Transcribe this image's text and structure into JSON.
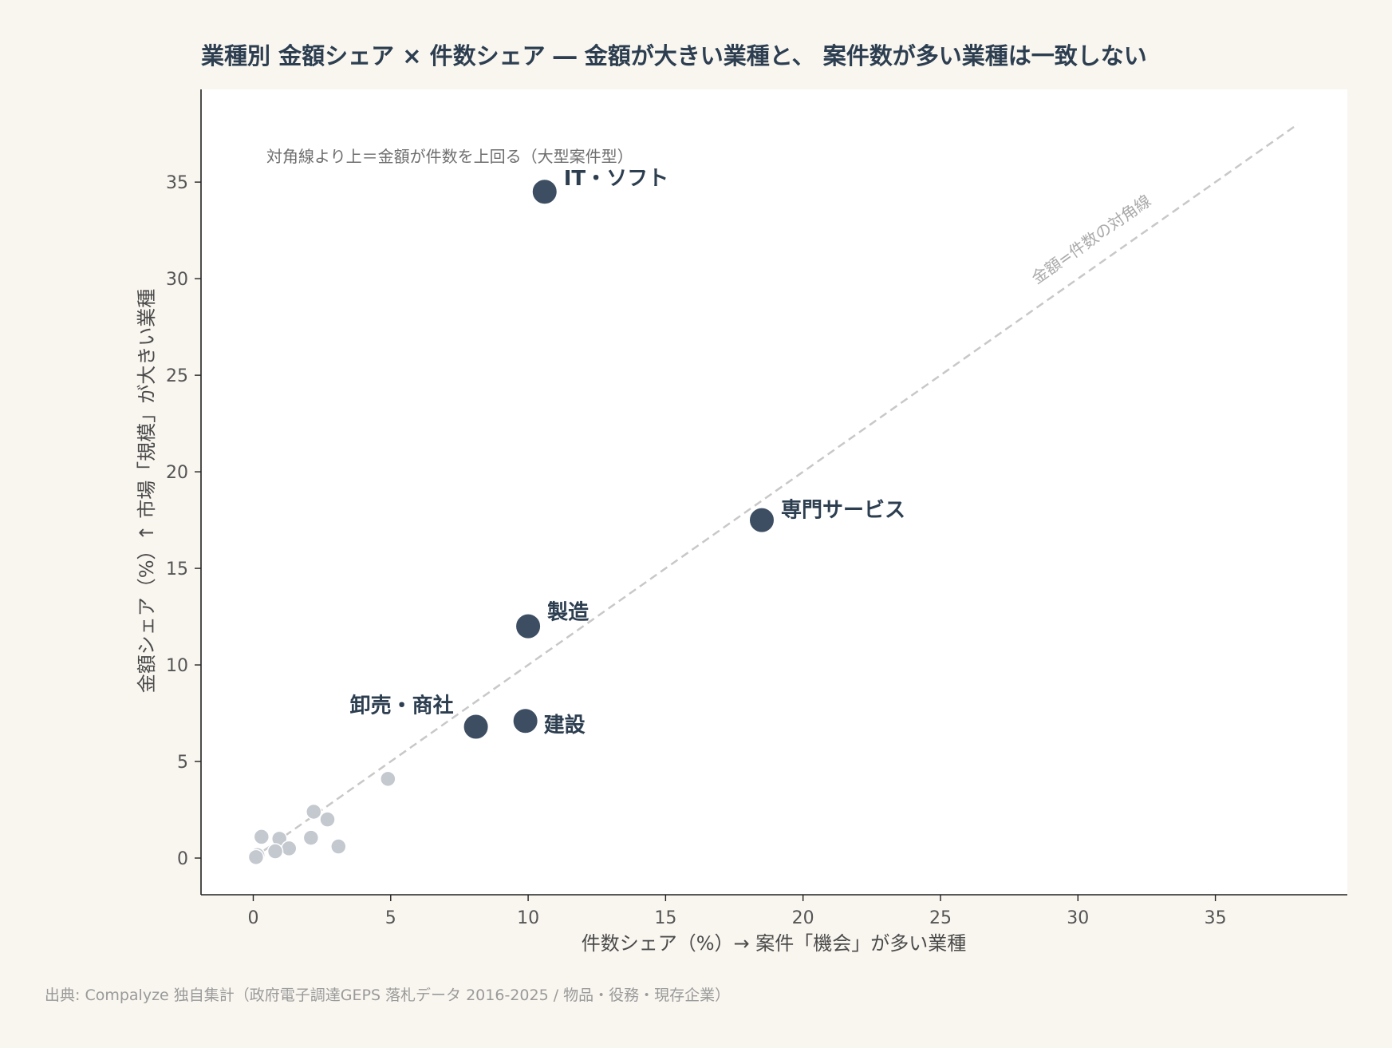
{
  "chart_data": {
    "type": "scatter",
    "title": "業種別 金額シェア × 件数シェア ― 金額が大きい業種と、 案件数が多い業種は一致しない",
    "xlabel": "件数シェア（%）→ 案件「機会」が多い業種",
    "ylabel": "金額シェア（%）↑ 市場「規模」が大きい業種",
    "xlim": [
      -1.9,
      39.8
    ],
    "ylim": [
      -1.9,
      39.8
    ],
    "x_ticks": [
      0,
      5,
      10,
      15,
      20,
      25,
      30,
      35
    ],
    "y_ticks": [
      0,
      5,
      10,
      15,
      20,
      25,
      30,
      35
    ],
    "grid": false,
    "diagonal": {
      "x": [
        0,
        38
      ],
      "y": [
        0,
        38
      ],
      "label": "金額=件数の対角線",
      "color": "#c8c8c8"
    },
    "annotation": "対角線より上＝金額が件数を上回る（大型案件型）",
    "highlight_color": "#3d4e63",
    "muted_color": "#c4c9cf",
    "highlighted": [
      {
        "label": "IT・ソフト",
        "x": 10.6,
        "y": 34.5
      },
      {
        "label": "専門サービス",
        "x": 18.5,
        "y": 17.5
      },
      {
        "label": "製造",
        "x": 10.0,
        "y": 12.0
      },
      {
        "label": "建設",
        "x": 9.9,
        "y": 7.1
      },
      {
        "label": "卸売・商社",
        "x": 8.1,
        "y": 6.8
      }
    ],
    "others": [
      {
        "x": 4.9,
        "y": 4.1
      },
      {
        "x": 2.2,
        "y": 2.4
      },
      {
        "x": 2.7,
        "y": 2.0
      },
      {
        "x": 2.1,
        "y": 1.05
      },
      {
        "x": 3.1,
        "y": 0.6
      },
      {
        "x": 0.3,
        "y": 1.1
      },
      {
        "x": 0.95,
        "y": 1.0
      },
      {
        "x": 1.3,
        "y": 0.5
      },
      {
        "x": 0.8,
        "y": 0.35
      },
      {
        "x": 0.15,
        "y": 0.15
      },
      {
        "x": 0.1,
        "y": 0.05
      }
    ]
  },
  "source": "出典: Compalyze 独自集計（政府電子調達GEPS 落札データ 2016-2025 / 物品・役務・現存企業）"
}
